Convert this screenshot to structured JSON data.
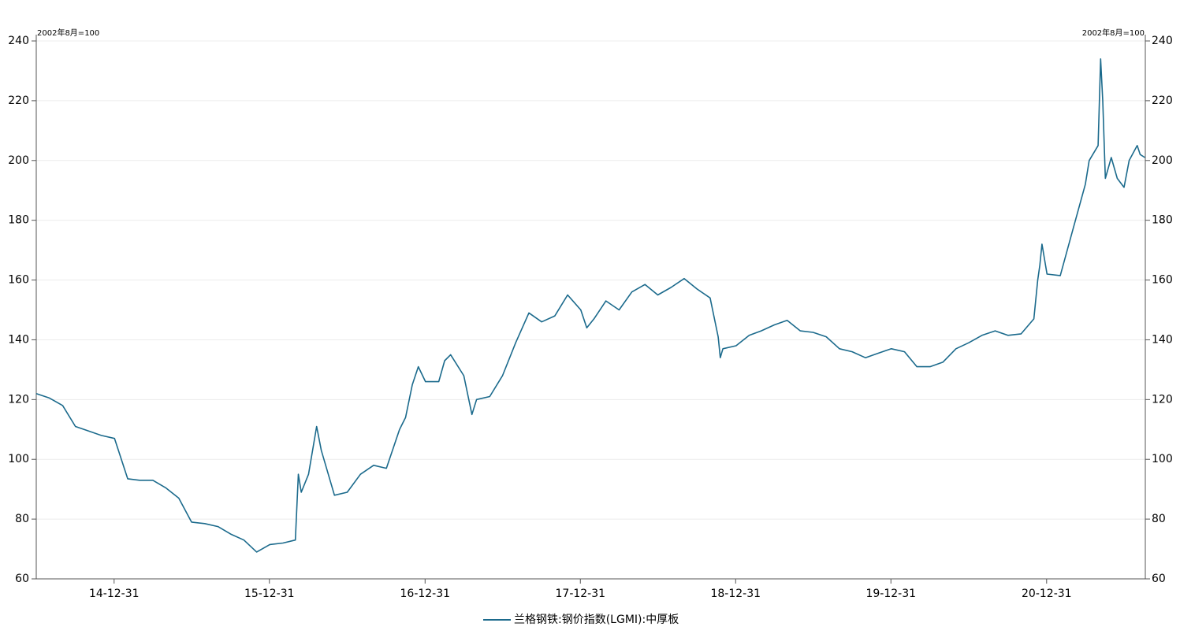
{
  "chart_data": {
    "type": "line",
    "ylabel": "2002年8月=100",
    "y2label": "2002年8月=100",
    "x": [
      "14-07-01",
      "14-08-01",
      "14-09-01",
      "14-10-01",
      "14-11-01",
      "14-12-01",
      "15-01-01",
      "15-02-01",
      "15-03-01",
      "15-04-01",
      "15-05-01",
      "15-06-01",
      "15-07-01",
      "15-08-01",
      "15-09-01",
      "15-10-01",
      "15-11-01",
      "15-12-01",
      "16-01-01",
      "16-02-01",
      "16-03-01",
      "16-03-08",
      "16-03-15",
      "16-04-01",
      "16-04-20",
      "16-05-01",
      "16-06-01",
      "16-07-01",
      "16-08-01",
      "16-09-01",
      "16-10-01",
      "16-11-01",
      "16-11-15",
      "16-12-01",
      "16-12-15",
      "17-01-01",
      "17-02-01",
      "17-02-15",
      "17-03-01",
      "17-04-01",
      "17-04-20",
      "17-05-01",
      "17-06-01",
      "17-07-01",
      "17-08-01",
      "17-09-01",
      "17-10-01",
      "17-11-01",
      "17-12-01",
      "18-01-01",
      "18-01-15",
      "18-02-01",
      "18-03-01",
      "18-04-01",
      "18-05-01",
      "18-06-01",
      "18-07-01",
      "18-08-01",
      "18-09-01",
      "18-10-01",
      "18-11-01",
      "18-11-20",
      "18-11-25",
      "18-12-01",
      "19-01-01",
      "19-02-01",
      "19-03-01",
      "19-04-01",
      "19-05-01",
      "19-06-01",
      "19-07-01",
      "19-08-01",
      "19-09-01",
      "19-10-01",
      "19-11-01",
      "19-12-01",
      "20-01-01",
      "20-02-01",
      "20-03-01",
      "20-04-01",
      "20-05-01",
      "20-06-01",
      "20-07-01",
      "20-08-01",
      "20-09-01",
      "20-10-01",
      "20-11-01",
      "20-12-01",
      "20-12-10",
      "20-12-15",
      "20-12-20",
      "21-01-01",
      "21-02-01",
      "21-03-01",
      "21-04-01",
      "21-04-10",
      "21-05-01",
      "21-05-07",
      "21-05-12",
      "21-05-18",
      "21-06-01",
      "21-06-15",
      "21-07-01",
      "21-07-13",
      "21-08-01",
      "21-08-08",
      "21-08-19"
    ],
    "series": [
      {
        "name": "兰格钢铁:钢价指数(LGMI):中厚板",
        "color": "#1b6a8c",
        "values": [
          122,
          120.5,
          118,
          111,
          109.5,
          108,
          107,
          93.5,
          93,
          93,
          90.5,
          87,
          79,
          78.5,
          77.5,
          75,
          73,
          69,
          71.5,
          72,
          73,
          95,
          89,
          95,
          111,
          103,
          88,
          89,
          95,
          98,
          97,
          110,
          114,
          125,
          131,
          126,
          126,
          133,
          135,
          128,
          115,
          120,
          121,
          128,
          139,
          149,
          146,
          148,
          155,
          150,
          144,
          147,
          153,
          150,
          156,
          158.5,
          155,
          157.5,
          160.5,
          157,
          154,
          141,
          134,
          137,
          138,
          141.5,
          143,
          145,
          146.5,
          143,
          142.5,
          141,
          137,
          136,
          134,
          135.5,
          137,
          136,
          131,
          131,
          132.5,
          137,
          139,
          141.5,
          143,
          141.5,
          142,
          147,
          160,
          165,
          172,
          162,
          161.5,
          176,
          192,
          200,
          205,
          234,
          220,
          194,
          201,
          194,
          191,
          200,
          205,
          202,
          201
        ]
      }
    ],
    "xlim": [
      "14-07-01",
      "21-08-20"
    ],
    "xticks": [
      "14-12-31",
      "15-12-31",
      "16-12-31",
      "17-12-31",
      "18-12-31",
      "19-12-31",
      "20-12-31"
    ],
    "ylim": [
      60,
      240
    ],
    "yticks": [
      60,
      80,
      100,
      120,
      140,
      160,
      180,
      200,
      220,
      240
    ],
    "y2lim": [
      60,
      240
    ],
    "y2ticks": [
      60,
      80,
      100,
      120,
      140,
      160,
      180,
      200,
      220,
      240
    ],
    "grid": true
  }
}
